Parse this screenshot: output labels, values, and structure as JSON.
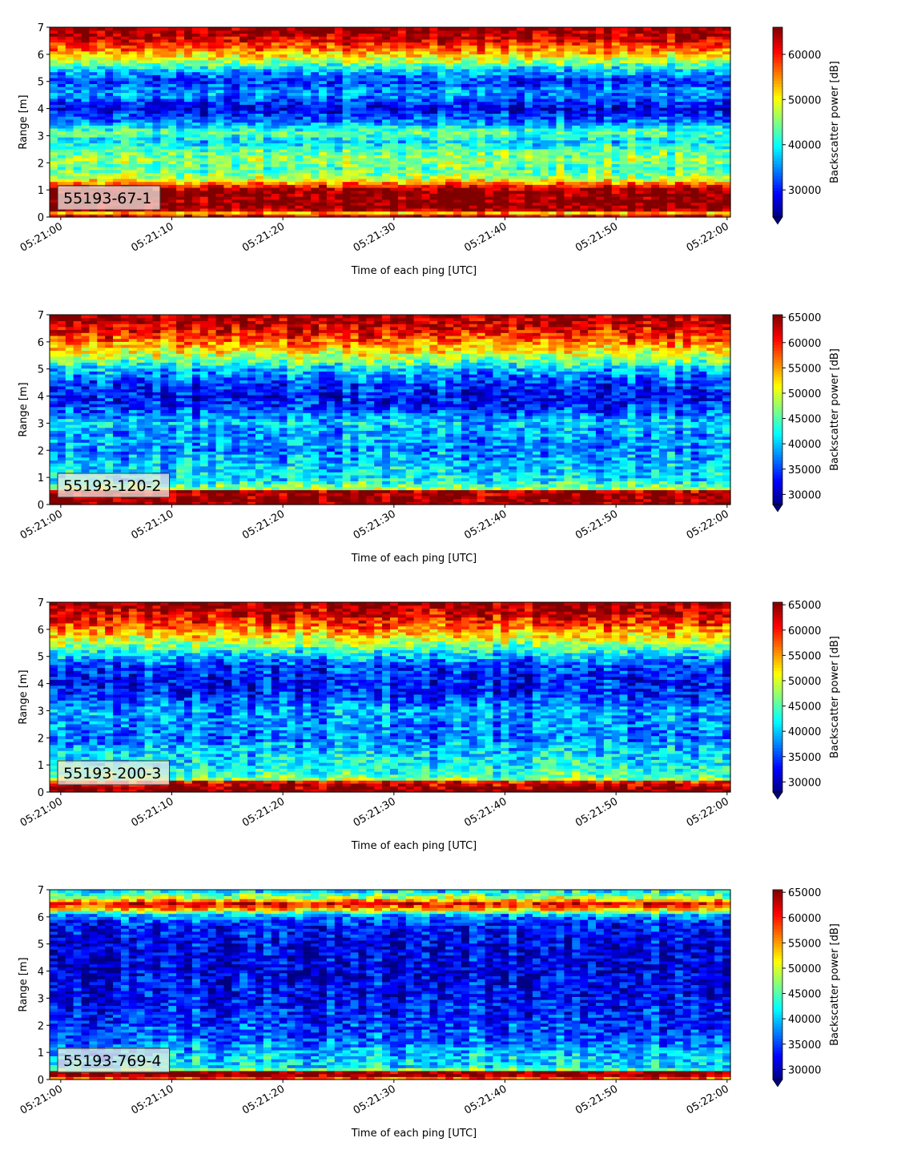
{
  "chart_data": [
    {
      "type": "heatmap",
      "panel_label": "55193-67-1",
      "xlabel": "Time of each ping [UTC]",
      "ylabel": "Range [m]",
      "colorbar_label": "Backscatter power [dB]",
      "colormap": "jet",
      "x_ticks": [
        "05:21:00",
        "05:21:10",
        "05:21:20",
        "05:21:30",
        "05:21:40",
        "05:21:50",
        "05:22:00"
      ],
      "x_range_seconds": [
        -1,
        60.3
      ],
      "y_ticks": [
        0,
        1,
        2,
        3,
        4,
        5,
        6,
        7
      ],
      "ylim": [
        0,
        7
      ],
      "clim": [
        24000,
        66000
      ],
      "cbar_ticks": [
        30000,
        40000,
        50000,
        60000
      ],
      "profile": [
        [
          0.0,
          66000
        ],
        [
          0.15,
          52000
        ],
        [
          0.3,
          66000
        ],
        [
          1.0,
          66000
        ],
        [
          1.2,
          58000
        ],
        [
          1.45,
          47000
        ],
        [
          1.8,
          43000
        ],
        [
          2.1,
          46000
        ],
        [
          2.5,
          43000
        ],
        [
          2.8,
          38000
        ],
        [
          3.1,
          44000
        ],
        [
          3.5,
          35000
        ],
        [
          4.0,
          28000
        ],
        [
          4.6,
          36000
        ],
        [
          5.0,
          31000
        ],
        [
          5.4,
          37000
        ],
        [
          5.8,
          48000
        ],
        [
          6.2,
          56000
        ],
        [
          6.6,
          63000
        ],
        [
          7.0,
          66000
        ]
      ]
    },
    {
      "type": "heatmap",
      "panel_label": "55193-120-2",
      "xlabel": "Time of each ping [UTC]",
      "ylabel": "Range [m]",
      "colorbar_label": "Backscatter power [dB]",
      "colormap": "jet",
      "x_ticks": [
        "05:21:00",
        "05:21:10",
        "05:21:20",
        "05:21:30",
        "05:21:40",
        "05:21:50",
        "05:22:00"
      ],
      "x_range_seconds": [
        -1,
        60.3
      ],
      "y_ticks": [
        0,
        1,
        2,
        3,
        4,
        5,
        6,
        7
      ],
      "ylim": [
        0,
        7
      ],
      "clim": [
        28000,
        65500
      ],
      "cbar_ticks": [
        30000,
        35000,
        40000,
        45000,
        50000,
        55000,
        60000,
        65000
      ],
      "profile": [
        [
          0.0,
          65500
        ],
        [
          0.2,
          65500
        ],
        [
          0.5,
          64000
        ],
        [
          0.6,
          48000
        ],
        [
          0.9,
          42000
        ],
        [
          1.5,
          40000
        ],
        [
          2.0,
          38000
        ],
        [
          2.8,
          39000
        ],
        [
          3.0,
          41000
        ],
        [
          3.5,
          35000
        ],
        [
          4.0,
          33000
        ],
        [
          4.5,
          35000
        ],
        [
          5.0,
          40000
        ],
        [
          5.3,
          46000
        ],
        [
          5.7,
          52000
        ],
        [
          6.1,
          58000
        ],
        [
          6.5,
          62000
        ],
        [
          7.0,
          65500
        ]
      ]
    },
    {
      "type": "heatmap",
      "panel_label": "55193-200-3",
      "xlabel": "Time of each ping [UTC]",
      "ylabel": "Range [m]",
      "colorbar_label": "Backscatter power [dB]",
      "colormap": "jet",
      "x_ticks": [
        "05:21:00",
        "05:21:10",
        "05:21:20",
        "05:21:30",
        "05:21:40",
        "05:21:50",
        "05:22:00"
      ],
      "x_range_seconds": [
        -1,
        60.3
      ],
      "y_ticks": [
        0,
        1,
        2,
        3,
        4,
        5,
        6,
        7
      ],
      "ylim": [
        0,
        7
      ],
      "clim": [
        28000,
        65500
      ],
      "cbar_ticks": [
        30000,
        35000,
        40000,
        45000,
        50000,
        55000,
        60000,
        65000
      ],
      "profile": [
        [
          0.0,
          65500
        ],
        [
          0.2,
          65500
        ],
        [
          0.4,
          60000
        ],
        [
          0.5,
          46000
        ],
        [
          1.0,
          42000
        ],
        [
          1.6,
          40000
        ],
        [
          2.0,
          37000
        ],
        [
          2.7,
          38000
        ],
        [
          3.0,
          39000
        ],
        [
          3.6,
          34000
        ],
        [
          4.2,
          33000
        ],
        [
          4.7,
          35000
        ],
        [
          5.1,
          41000
        ],
        [
          5.5,
          48000
        ],
        [
          5.9,
          54000
        ],
        [
          6.3,
          60000
        ],
        [
          6.7,
          63000
        ],
        [
          7.0,
          65500
        ]
      ]
    },
    {
      "type": "heatmap",
      "panel_label": "55193-769-4",
      "xlabel": "Time of each ping [UTC]",
      "ylabel": "Range [m]",
      "colorbar_label": "Backscatter power [dB]",
      "colormap": "jet",
      "x_ticks": [
        "05:21:00",
        "05:21:10",
        "05:21:20",
        "05:21:30",
        "05:21:40",
        "05:21:50",
        "05:22:00"
      ],
      "x_range_seconds": [
        -1,
        60.3
      ],
      "y_ticks": [
        0,
        1,
        2,
        3,
        4,
        5,
        6,
        7
      ],
      "ylim": [
        0,
        7
      ],
      "clim": [
        28000,
        65500
      ],
      "cbar_ticks": [
        30000,
        35000,
        40000,
        45000,
        50000,
        55000,
        60000,
        65000
      ],
      "profile": [
        [
          0.0,
          50000
        ],
        [
          0.1,
          65500
        ],
        [
          0.3,
          65500
        ],
        [
          0.4,
          42000
        ],
        [
          1.0,
          40000
        ],
        [
          1.5,
          36000
        ],
        [
          2.0,
          35000
        ],
        [
          3.0,
          33000
        ],
        [
          4.0,
          32000
        ],
        [
          5.0,
          32000
        ],
        [
          5.8,
          34000
        ],
        [
          6.1,
          40000
        ],
        [
          6.3,
          55000
        ],
        [
          6.5,
          62000
        ],
        [
          6.7,
          50000
        ],
        [
          7.0,
          40000
        ]
      ]
    }
  ]
}
